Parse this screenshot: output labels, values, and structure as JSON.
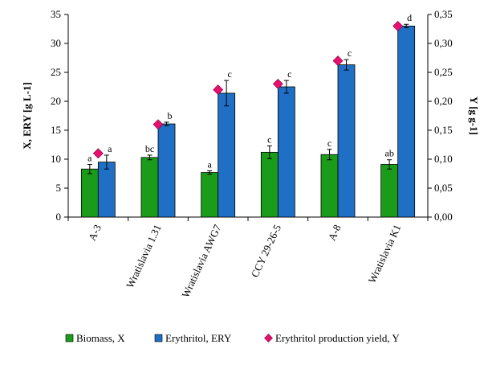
{
  "chart_data": {
    "type": "bar",
    "title": "",
    "categories": [
      "A-3",
      "Wratislavia 1.31",
      "Wratislavia AWG7",
      "CCY 29-26-5",
      "A-8",
      "Wratislavia K1"
    ],
    "ylabel": "X, ERY [g L-1]",
    "y2label": "Y [g g-1]",
    "ylim": [
      0,
      35
    ],
    "y2lim": [
      0,
      0.35
    ],
    "yticks": [
      "0",
      "5",
      "10",
      "15",
      "20",
      "25",
      "30",
      "35"
    ],
    "y2ticks": [
      "0,00",
      "0,05",
      "0,10",
      "0,15",
      "0,20",
      "0,25",
      "0,30",
      "0,35"
    ],
    "series": [
      {
        "name": "Biomass, X",
        "axis": "left",
        "color": "#1a9b1a",
        "values": [
          8.3,
          10.3,
          7.7,
          11.2,
          10.8,
          9.1
        ],
        "errors": [
          0.8,
          0.4,
          0.3,
          1.1,
          0.9,
          0.8
        ],
        "labels": [
          "a",
          "bc",
          "a",
          "c",
          "c",
          "ab"
        ]
      },
      {
        "name": "Erythritol, ERY",
        "axis": "left",
        "color": "#1f6fc4",
        "values": [
          9.5,
          16.1,
          21.4,
          22.5,
          26.3,
          33.0
        ],
        "errors": [
          1.2,
          0.3,
          2.2,
          1.1,
          0.9,
          0.3
        ],
        "labels": [
          "a",
          "b",
          "c",
          "c",
          "c",
          "d"
        ]
      },
      {
        "name": "Erythritol production yield, Y",
        "axis": "right",
        "color": "#e8106f",
        "values": [
          0.11,
          0.16,
          0.22,
          0.23,
          0.27,
          0.33
        ]
      }
    ],
    "legend_position": "bottom"
  }
}
